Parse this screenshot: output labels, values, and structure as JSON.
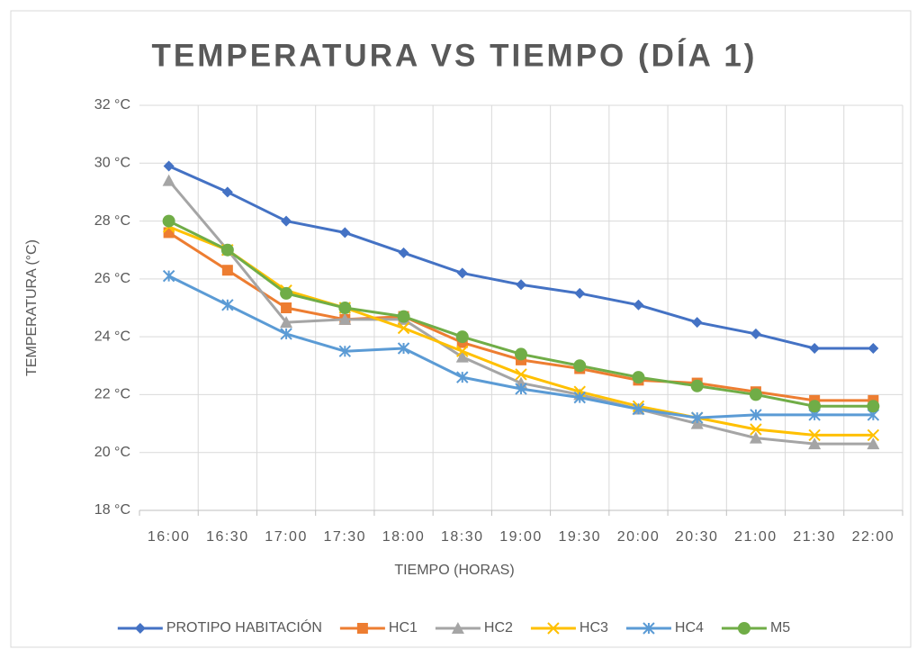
{
  "chart_data": {
    "type": "line",
    "title": "TEMPERATURA VS TIEMPO (DÍA 1)",
    "x_label": "TIEMPO (HORAS)",
    "y_label": "TEMPERATURA (°C)",
    "categories": [
      "16:00",
      "16:30",
      "17:00",
      "17:30",
      "18:00",
      "18:30",
      "19:00",
      "19:30",
      "20:00",
      "20:30",
      "21:00",
      "21:30",
      "22:00"
    ],
    "series": [
      {
        "name": "PROTIPO HABITACIÓN",
        "color": "#4472c4",
        "marker": "diamond",
        "values": [
          29.9,
          29.0,
          28.0,
          27.6,
          26.9,
          26.2,
          25.8,
          25.5,
          25.1,
          24.5,
          24.1,
          23.6,
          23.6
        ]
      },
      {
        "name": "HC1",
        "color": "#ed7d31",
        "marker": "square",
        "values": [
          27.6,
          26.3,
          25.0,
          24.6,
          24.7,
          23.8,
          23.2,
          22.9,
          22.5,
          22.4,
          22.1,
          21.8,
          21.8
        ]
      },
      {
        "name": "HC2",
        "color": "#a5a5a5",
        "marker": "triangle",
        "values": [
          29.4,
          27.0,
          24.5,
          24.6,
          24.6,
          23.3,
          22.4,
          22.0,
          21.5,
          21.0,
          20.5,
          20.3,
          20.3
        ]
      },
      {
        "name": "HC3",
        "color": "#ffc000",
        "marker": "x",
        "values": [
          27.8,
          27.0,
          25.6,
          25.0,
          24.3,
          23.5,
          22.7,
          22.1,
          21.6,
          21.2,
          20.8,
          20.6,
          20.6
        ]
      },
      {
        "name": "HC4",
        "color": "#5b9bd5",
        "marker": "star",
        "values": [
          26.1,
          25.1,
          24.1,
          23.5,
          23.6,
          22.6,
          22.2,
          21.9,
          21.5,
          21.2,
          21.3,
          21.3,
          21.3
        ]
      },
      {
        "name": "M5",
        "color": "#70ad47",
        "marker": "circle",
        "values": [
          28.0,
          27.0,
          25.5,
          25.0,
          24.7,
          24.0,
          23.4,
          23.0,
          22.6,
          22.3,
          22.0,
          21.6,
          21.6
        ]
      }
    ],
    "ylim": [
      18,
      32
    ],
    "yticks": [
      {
        "value": 18,
        "label": "18 °C"
      },
      {
        "value": 20,
        "label": "20 °C"
      },
      {
        "value": 22,
        "label": "22 °C"
      },
      {
        "value": 24,
        "label": "24 °C"
      },
      {
        "value": 26,
        "label": "26 °C"
      },
      {
        "value": 28,
        "label": "28 °C"
      },
      {
        "value": 30,
        "label": "30 °C"
      },
      {
        "value": 32,
        "label": "32 °C"
      }
    ],
    "grid": true,
    "legend": "bottom"
  }
}
